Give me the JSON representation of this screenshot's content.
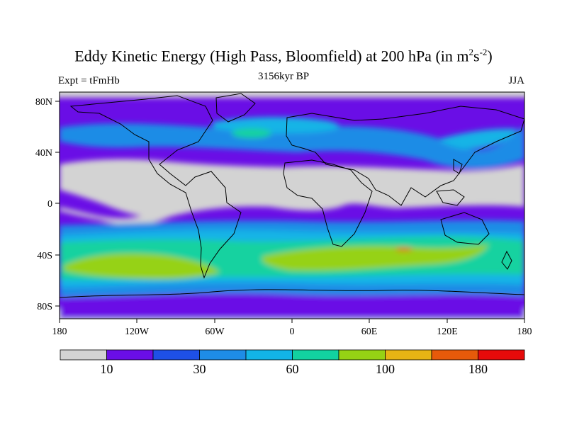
{
  "title_main": "Eddy Kinetic Energy (High Pass, Bloomfield) at 200 hPa (in m",
  "title_sup1": "2",
  "title_mid": "s",
  "title_sup2": "-2",
  "title_end": ")",
  "subtitle": "3156kyr BP",
  "left_label": "Expt = tFmHb",
  "right_label": "JJA",
  "lat_labels": [
    "80N",
    "40N",
    "0",
    "40S",
    "80S"
  ],
  "lon_labels": [
    "180",
    "120W",
    "60W",
    "0",
    "60E",
    "120E",
    "180"
  ],
  "colorbar": {
    "colors": [
      "#d3d3d3",
      "#6a0ee6",
      "#1e50e6",
      "#1e8ce6",
      "#12b4e6",
      "#12d2a0",
      "#96d214",
      "#e6b414",
      "#e65a0a",
      "#e60a0a"
    ],
    "labels": [
      "10",
      "30",
      "60",
      "100",
      "180"
    ]
  }
}
